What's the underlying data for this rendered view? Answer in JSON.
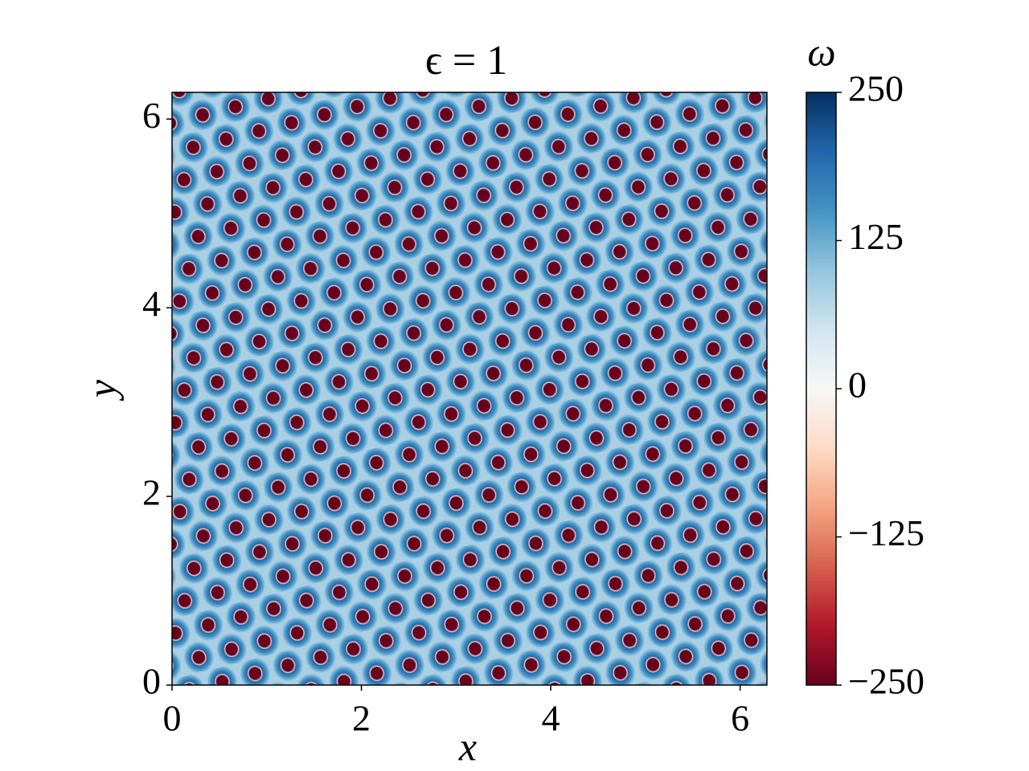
{
  "chart_data": {
    "type": "heatmap",
    "title": "ϵ = 1",
    "xlabel": "x",
    "ylabel": "y",
    "xlim": [
      0,
      6.2832
    ],
    "ylim": [
      0,
      6.2832
    ],
    "xticks": [
      0,
      2,
      4,
      6
    ],
    "yticks": [
      0,
      2,
      4,
      6
    ],
    "colorbar": {
      "label": "ω",
      "lim": [
        -250,
        250
      ],
      "ticks": [
        {
          "value": -250,
          "label": "−250"
        },
        {
          "value": -125,
          "label": "−125"
        },
        0,
        125,
        250
      ],
      "colors": [
        "#67001f",
        "#b2182b",
        "#d6604d",
        "#f4a582",
        "#fddbc7",
        "#f7f7f7",
        "#d1e5f0",
        "#92c5de",
        "#4393c3",
        "#2166ac",
        "#053061"
      ]
    }
  }
}
